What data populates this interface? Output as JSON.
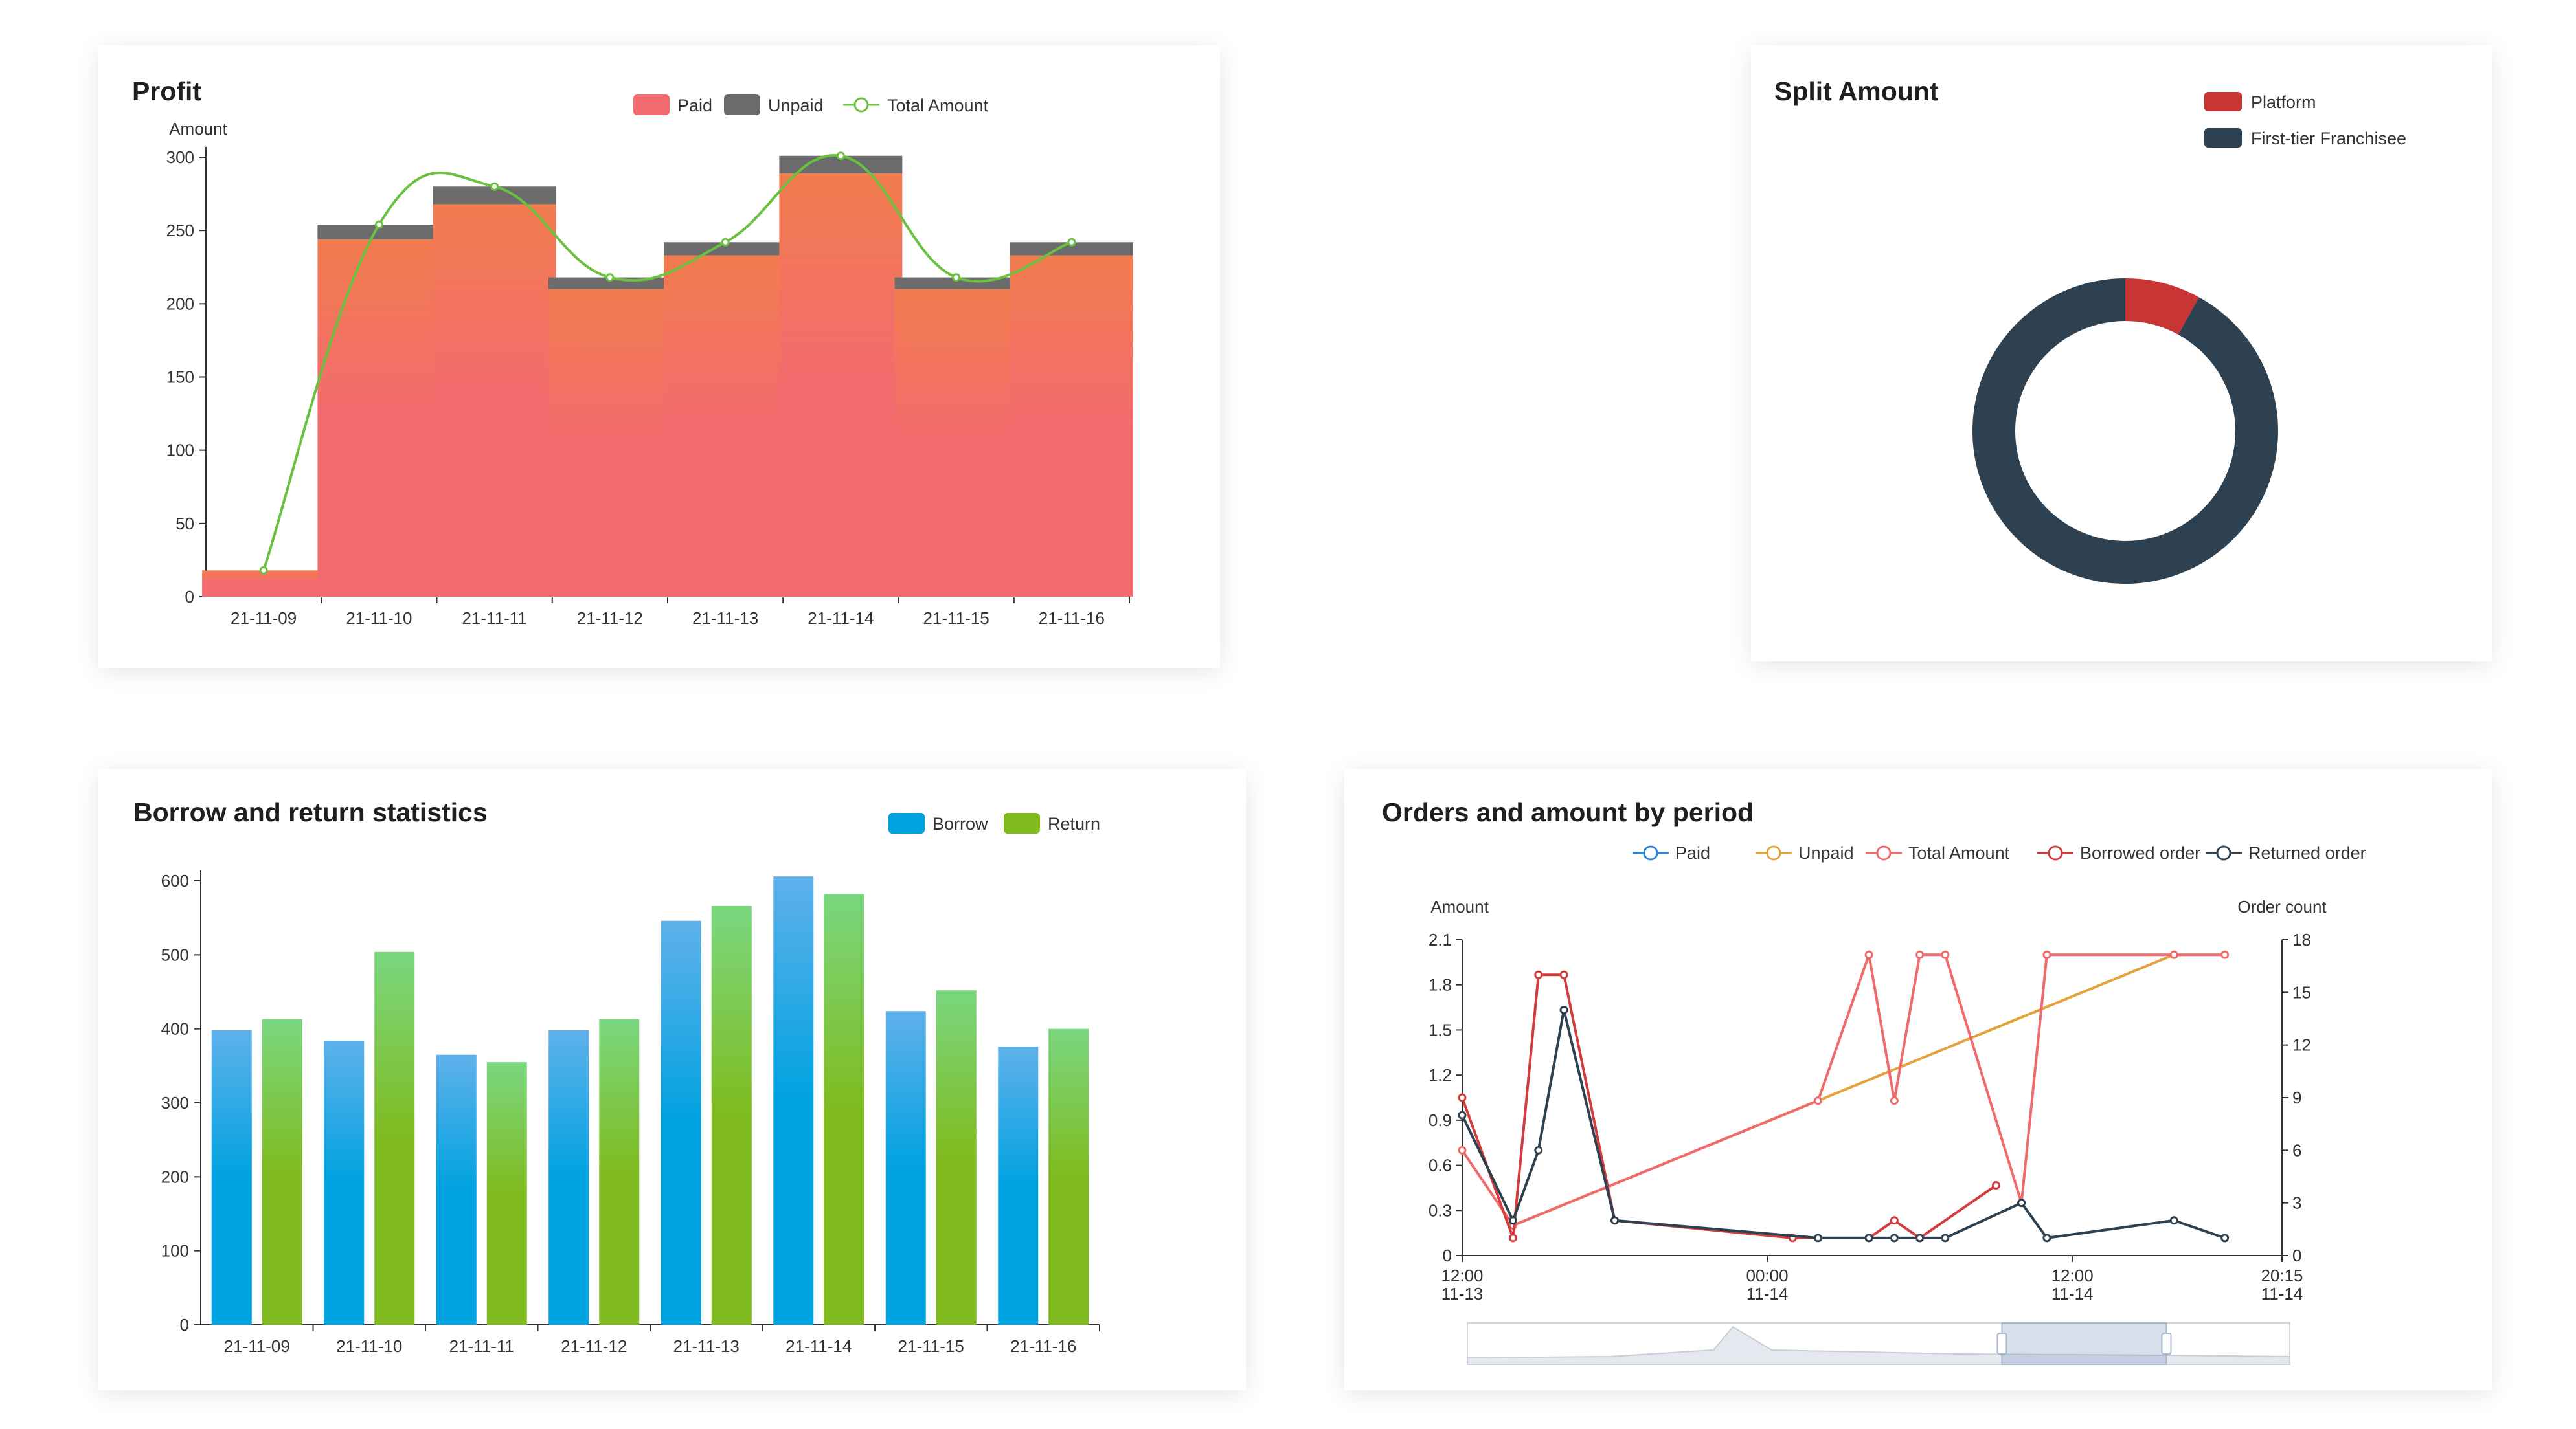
{
  "colors": {
    "paid": "#f36b6f",
    "paid_top": "#f17c4e",
    "unpaid": "#6b6b6b",
    "total_line": "#6ac13f",
    "platform": "#c73534",
    "franchisee": "#2e4150",
    "borrow": "#00a2e0",
    "borrow_top": "#5fb1ea",
    "return": "#7fbb1f",
    "return_top": "#7ad77f",
    "orders_paid": "#2e88d8",
    "orders_unpaid": "#e4a23a",
    "orders_total": "#ef6b6b",
    "orders_borrowed": "#d23c3c",
    "orders_returned": "#2e4150"
  },
  "chart_data": [
    {
      "id": "profit",
      "type": "bar",
      "title": "Profit",
      "ylabel": "Amount",
      "ylim": [
        0,
        300
      ],
      "yticks": [
        "0",
        "50",
        "100",
        "150",
        "200",
        "250",
        "300"
      ],
      "categories": [
        "21-11-09",
        "21-11-10",
        "21-11-11",
        "21-11-12",
        "21-11-13",
        "21-11-14",
        "21-11-15",
        "21-11-16"
      ],
      "series": [
        {
          "name": "Paid",
          "type": "bar",
          "stack": true,
          "values": [
            18,
            244,
            268,
            210,
            233,
            289,
            210,
            233
          ]
        },
        {
          "name": "Unpaid",
          "type": "bar",
          "stack": true,
          "values": [
            0,
            10,
            12,
            8,
            9,
            12,
            8,
            9
          ]
        },
        {
          "name": "Total Amount",
          "type": "line",
          "smooth": true,
          "values": [
            18,
            254,
            280,
            218,
            242,
            301,
            218,
            242
          ]
        }
      ],
      "legend_position": "top-center",
      "grid": false
    },
    {
      "id": "split",
      "type": "pie",
      "title": "Split Amount",
      "donut": true,
      "slices": [
        {
          "name": "Platform",
          "value": 8
        },
        {
          "name": "First-tier Franchisee",
          "value": 92
        }
      ],
      "legend_position": "top-right"
    },
    {
      "id": "borrow",
      "type": "bar",
      "title": "Borrow and return statistics",
      "ylim": [
        0,
        600
      ],
      "yticks": [
        "0",
        "100",
        "200",
        "300",
        "400",
        "500",
        "600"
      ],
      "categories": [
        "21-11-09",
        "21-11-10",
        "21-11-11",
        "21-11-12",
        "21-11-13",
        "21-11-14",
        "21-11-15",
        "21-11-16"
      ],
      "series": [
        {
          "name": "Borrow",
          "values": [
            398,
            384,
            365,
            398,
            546,
            606,
            424,
            376
          ]
        },
        {
          "name": "Return",
          "values": [
            413,
            504,
            355,
            413,
            566,
            582,
            452,
            400
          ]
        }
      ],
      "legend_position": "top-right",
      "grid": false
    },
    {
      "id": "orders",
      "type": "line",
      "title": "Orders and amount by period",
      "ylabel_left": "Amount",
      "ylabel_right": "Order count",
      "ylim_left": [
        0,
        2.1
      ],
      "ylim_right": [
        0,
        18
      ],
      "yticks_left": [
        "0",
        "0.3",
        "0.6",
        "0.9",
        "1.2",
        "1.5",
        "1.8",
        "2.1"
      ],
      "yticks_right": [
        "0",
        "3",
        "6",
        "9",
        "12",
        "15",
        "18"
      ],
      "x_range_hours": [
        0,
        32.25
      ],
      "xticks": [
        {
          "hour": 0,
          "line1": "12:00",
          "line2": "11-13"
        },
        {
          "hour": 12,
          "line1": "00:00",
          "line2": "11-14"
        },
        {
          "hour": 24,
          "line1": "12:00",
          "line2": "11-14"
        },
        {
          "hour": 32.25,
          "line1": "20:15",
          "line2": "11-14"
        }
      ],
      "series": [
        {
          "name": "Paid",
          "axis": "left",
          "points": []
        },
        {
          "name": "Unpaid",
          "axis": "left",
          "points": [
            [
              2,
              0.2
            ],
            [
              14,
              1.03
            ],
            [
              28,
              2.0
            ]
          ]
        },
        {
          "name": "Total Amount",
          "axis": "left",
          "points": [
            [
              0,
              0.7
            ],
            [
              2,
              0.2
            ],
            [
              14,
              1.03
            ],
            [
              16,
              2.0
            ],
            [
              17,
              1.03
            ],
            [
              18,
              2.0
            ],
            [
              19,
              2.0
            ],
            [
              22,
              0.35
            ],
            [
              23,
              2.0
            ],
            [
              28,
              2.0
            ],
            [
              30,
              2.0
            ]
          ]
        },
        {
          "name": "Borrowed order",
          "axis": "right",
          "points": [
            [
              0,
              9
            ],
            [
              2,
              1
            ],
            [
              3,
              16
            ],
            [
              4,
              16
            ],
            [
              6,
              2
            ],
            [
              13,
              1
            ],
            [
              16,
              1
            ],
            [
              17,
              2
            ],
            [
              18,
              1
            ],
            [
              21,
              4
            ]
          ]
        },
        {
          "name": "Returned order",
          "axis": "right",
          "points": [
            [
              0,
              8
            ],
            [
              2,
              2
            ],
            [
              3,
              6
            ],
            [
              4,
              14
            ],
            [
              6,
              2
            ],
            [
              14,
              1
            ],
            [
              16,
              1
            ],
            [
              17,
              1
            ],
            [
              18,
              1
            ],
            [
              19,
              1
            ],
            [
              22,
              3
            ],
            [
              23,
              1
            ],
            [
              28,
              2
            ],
            [
              30,
              1
            ]
          ]
        }
      ],
      "data_zoom": {
        "start": 0.65,
        "end": 0.85
      },
      "legend_position": "top-center"
    }
  ]
}
